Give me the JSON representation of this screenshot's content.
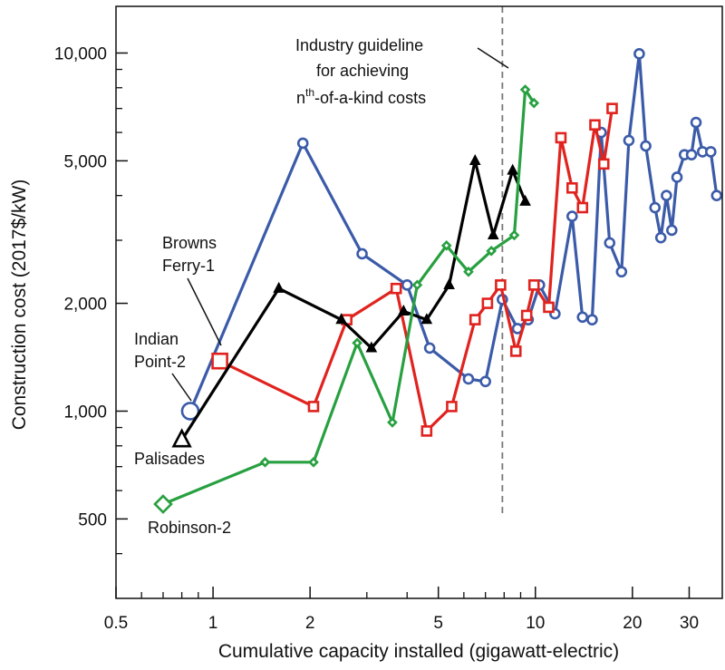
{
  "chart_data": {
    "type": "line",
    "xscale": "log",
    "yscale": "log",
    "xlabel": "Cumulative capacity installed (gigawatt-electric)",
    "ylabel": "Construction cost (2017$/kW)",
    "xlim": [
      0.5,
      38
    ],
    "ylim": [
      300,
      13500
    ],
    "xticks": [
      0.5,
      1,
      2,
      5,
      10,
      20,
      30
    ],
    "xtick_labels": [
      "0.5",
      "1",
      "2",
      "5",
      "10",
      "20",
      "30"
    ],
    "yticks": [
      500,
      1000,
      2000,
      5000,
      10000
    ],
    "ytick_labels": [
      "500",
      "1,000",
      "2,000",
      "5,000",
      "10,000"
    ],
    "grid": false,
    "series": [
      {
        "color": "#3b5ba9",
        "marker": "circle",
        "points": [
          [
            0.85,
            1000
          ],
          [
            1.9,
            5600
          ],
          [
            2.9,
            2750
          ],
          [
            4.0,
            2250
          ],
          [
            4.7,
            1500
          ],
          [
            6.2,
            1230
          ],
          [
            7.0,
            1210
          ],
          [
            7.9,
            2050
          ],
          [
            8.8,
            1700
          ],
          [
            9.5,
            1800
          ],
          [
            10.3,
            2250
          ],
          [
            11.5,
            1870
          ],
          [
            13.0,
            3500
          ],
          [
            14.0,
            1830
          ],
          [
            15.0,
            1800
          ],
          [
            16.0,
            6000
          ],
          [
            17.0,
            2950
          ],
          [
            18.5,
            2450
          ],
          [
            19.5,
            5700
          ],
          [
            21.0,
            9950
          ],
          [
            22.0,
            5500
          ],
          [
            23.5,
            3700
          ],
          [
            24.5,
            3050
          ],
          [
            25.5,
            4000
          ],
          [
            26.5,
            3200
          ],
          [
            27.5,
            4500
          ],
          [
            29.0,
            5200
          ],
          [
            30.5,
            5200
          ],
          [
            31.5,
            6400
          ],
          [
            33.0,
            5300
          ],
          [
            35.0,
            5300
          ],
          [
            36.5,
            4000
          ]
        ]
      },
      {
        "color": "#e0231e",
        "marker": "square",
        "points": [
          [
            1.05,
            1380
          ],
          [
            2.05,
            1030
          ],
          [
            2.6,
            1800
          ],
          [
            3.7,
            2200
          ],
          [
            4.6,
            880
          ],
          [
            5.5,
            1030
          ],
          [
            6.5,
            1800
          ],
          [
            7.1,
            2000
          ],
          [
            7.8,
            2250
          ],
          [
            8.7,
            1470
          ],
          [
            9.4,
            1850
          ],
          [
            9.9,
            2250
          ],
          [
            11.0,
            1950
          ],
          [
            12.0,
            5800
          ],
          [
            13.0,
            4200
          ],
          [
            14.0,
            3700
          ],
          [
            15.3,
            6300
          ],
          [
            16.3,
            4900
          ],
          [
            17.3,
            7000
          ]
        ]
      },
      {
        "color": "#000000",
        "marker": "triangle",
        "points": [
          [
            0.8,
            830
          ],
          [
            1.6,
            2200
          ],
          [
            2.5,
            1800
          ],
          [
            3.1,
            1500
          ],
          [
            3.9,
            1900
          ],
          [
            4.6,
            1800
          ],
          [
            5.4,
            2250
          ],
          [
            6.5,
            5000
          ],
          [
            7.4,
            3100
          ],
          [
            8.5,
            4700
          ],
          [
            9.3,
            3850
          ]
        ]
      },
      {
        "color": "#27a040",
        "marker": "diamond",
        "points": [
          [
            0.7,
            550
          ],
          [
            1.45,
            720
          ],
          [
            2.05,
            720
          ],
          [
            2.8,
            1550
          ],
          [
            3.6,
            930
          ],
          [
            4.3,
            2250
          ],
          [
            5.3,
            2900
          ],
          [
            6.2,
            2450
          ],
          [
            7.3,
            2800
          ],
          [
            8.6,
            3100
          ],
          [
            9.3,
            7900
          ],
          [
            9.9,
            7250
          ]
        ]
      }
    ],
    "annotations": {
      "browns_ferry_line1": "Browns",
      "browns_ferry_line2": "Ferry-1",
      "indian_point_line1": "Indian",
      "indian_point_line2": "Point-2",
      "palisades": "Palisades",
      "robinson": "Robinson-2",
      "guideline_line1": "Industry guideline",
      "guideline_line2": "for achieving",
      "guideline_line3_sup_base": "n",
      "guideline_line3_sup": "th",
      "guideline_line3_rest": "-of-a-kind costs",
      "guideline_x": 7.9
    }
  }
}
